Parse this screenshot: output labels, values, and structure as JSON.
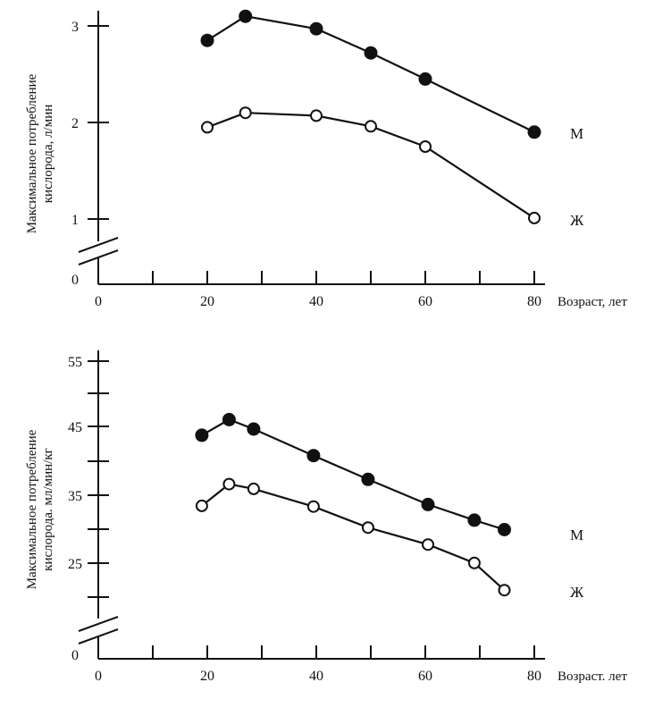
{
  "chart_data": [
    {
      "type": "line",
      "title": "",
      "xlabel": "Возраст, лет",
      "ylabel": "Максимальное потребление кислорода, л/мин",
      "xlim": [
        0,
        80
      ],
      "ylim": [
        0,
        3
      ],
      "x_ticks": [
        0,
        20,
        40,
        60,
        80
      ],
      "y_ticks": [
        0,
        1,
        2,
        3
      ],
      "grid": false,
      "legend": "labels at right end of lines",
      "series": [
        {
          "name": "М",
          "marker": "filled",
          "x": [
            20,
            27,
            40,
            50,
            60,
            80
          ],
          "y": [
            2.85,
            3.1,
            2.97,
            2.72,
            2.45,
            1.9
          ]
        },
        {
          "name": "Ж",
          "marker": "open",
          "x": [
            20,
            27,
            40,
            50,
            60,
            80
          ],
          "y": [
            1.95,
            2.1,
            2.07,
            1.96,
            1.75,
            1.01
          ]
        }
      ]
    },
    {
      "type": "line",
      "title": "",
      "xlabel": "Возраст. лет",
      "ylabel": "Максимальное потребление кислорода. мл/мин/кг",
      "xlim": [
        0,
        80
      ],
      "ylim": [
        0,
        55
      ],
      "x_ticks": [
        0,
        20,
        40,
        60,
        80
      ],
      "y_ticks": [
        0,
        25,
        35,
        45,
        55
      ],
      "grid": false,
      "legend": "labels at right end of lines",
      "series": [
        {
          "name": "М",
          "marker": "filled",
          "x": [
            19,
            24,
            28.5,
            39.5,
            49.5,
            60.5,
            69,
            74.5
          ],
          "y": [
            43.7,
            46.0,
            44.6,
            40.7,
            37.2,
            33.5,
            31.2,
            29.8
          ]
        },
        {
          "name": "Ж",
          "marker": "open",
          "x": [
            19,
            24,
            28.5,
            39.5,
            49.5,
            60.5,
            69,
            74.5
          ],
          "y": [
            33.3,
            36.5,
            35.8,
            33.2,
            30.1,
            27.6,
            24.9,
            20.9
          ]
        }
      ]
    }
  ]
}
